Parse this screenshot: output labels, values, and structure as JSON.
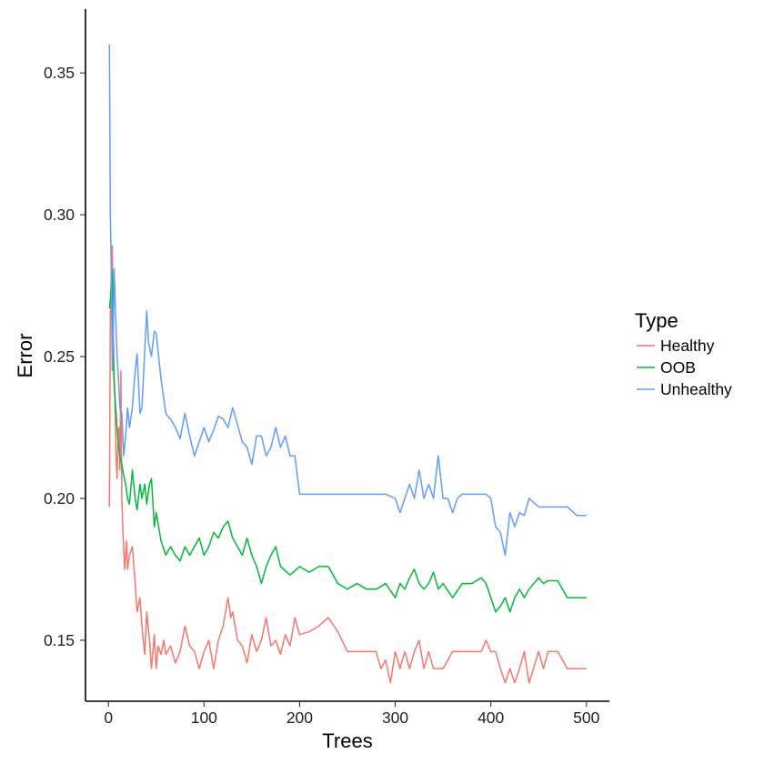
{
  "chart_data": {
    "type": "line",
    "xlabel": "Trees",
    "ylabel": "Error",
    "xlim": [
      -24,
      524
    ],
    "ylim": [
      0.1285,
      0.3725
    ],
    "xticks": [
      0,
      100,
      200,
      300,
      400,
      500
    ],
    "yticks": [
      0.15,
      0.2,
      0.25,
      0.3,
      0.35
    ],
    "ytick_labels": [
      "0.15",
      "0.20",
      "0.25",
      "0.30",
      "0.35"
    ],
    "grid": false,
    "legend": {
      "title": "Type",
      "position": "right"
    },
    "series": [
      {
        "name": "Healthy",
        "color": "#F8766D",
        "x": [
          1,
          2,
          3,
          4,
          5,
          6,
          7,
          8,
          9,
          10,
          11,
          12,
          13,
          14,
          15,
          17,
          19,
          20,
          22,
          25,
          28,
          30,
          33,
          35,
          38,
          40,
          43,
          45,
          48,
          50,
          52,
          55,
          58,
          60,
          65,
          70,
          75,
          80,
          85,
          90,
          95,
          100,
          105,
          110,
          115,
          120,
          125,
          128,
          130,
          135,
          140,
          145,
          150,
          155,
          160,
          165,
          170,
          175,
          180,
          185,
          190,
          195,
          200,
          210,
          220,
          230,
          240,
          250,
          260,
          270,
          280,
          285,
          290,
          295,
          300,
          305,
          310,
          315,
          320,
          325,
          330,
          335,
          340,
          350,
          360,
          370,
          380,
          390,
          395,
          400,
          405,
          410,
          415,
          420,
          425,
          430,
          435,
          440,
          450,
          455,
          460,
          470,
          480,
          490,
          500
        ],
        "y": [
          0.197,
          0.265,
          0.28,
          0.289,
          0.26,
          0.245,
          0.23,
          0.215,
          0.207,
          0.22,
          0.225,
          0.21,
          0.245,
          0.2,
          0.19,
          0.175,
          0.185,
          0.175,
          0.18,
          0.183,
          0.17,
          0.16,
          0.165,
          0.155,
          0.145,
          0.16,
          0.15,
          0.14,
          0.152,
          0.14,
          0.148,
          0.145,
          0.15,
          0.145,
          0.148,
          0.142,
          0.146,
          0.155,
          0.148,
          0.146,
          0.14,
          0.146,
          0.15,
          0.14,
          0.15,
          0.155,
          0.165,
          0.158,
          0.16,
          0.15,
          0.148,
          0.142,
          0.152,
          0.146,
          0.15,
          0.158,
          0.148,
          0.15,
          0.145,
          0.152,
          0.148,
          0.158,
          0.152,
          0.153,
          0.155,
          0.158,
          0.153,
          0.146,
          0.146,
          0.146,
          0.146,
          0.14,
          0.143,
          0.135,
          0.146,
          0.14,
          0.146,
          0.14,
          0.146,
          0.15,
          0.14,
          0.146,
          0.14,
          0.14,
          0.146,
          0.146,
          0.146,
          0.146,
          0.15,
          0.146,
          0.146,
          0.14,
          0.135,
          0.14,
          0.135,
          0.14,
          0.146,
          0.135,
          0.146,
          0.14,
          0.146,
          0.146,
          0.14,
          0.14,
          0.14
        ]
      },
      {
        "name": "OOB",
        "color": "#00BA38",
        "x": [
          1,
          2,
          3,
          4,
          5,
          6,
          7,
          8,
          9,
          10,
          12,
          14,
          16,
          18,
          20,
          22,
          25,
          28,
          30,
          33,
          35,
          38,
          40,
          43,
          45,
          48,
          50,
          55,
          60,
          65,
          70,
          75,
          80,
          85,
          90,
          95,
          100,
          105,
          110,
          115,
          120,
          125,
          130,
          135,
          140,
          145,
          150,
          155,
          160,
          165,
          170,
          175,
          180,
          190,
          200,
          210,
          220,
          230,
          240,
          250,
          260,
          270,
          280,
          290,
          300,
          305,
          310,
          315,
          320,
          325,
          330,
          335,
          340,
          345,
          350,
          360,
          370,
          380,
          390,
          395,
          400,
          405,
          410,
          415,
          420,
          425,
          430,
          435,
          440,
          445,
          450,
          455,
          460,
          470,
          480,
          490,
          500
        ],
        "y": [
          0.267,
          0.27,
          0.275,
          0.28,
          0.25,
          0.24,
          0.235,
          0.23,
          0.225,
          0.22,
          0.215,
          0.212,
          0.208,
          0.205,
          0.2,
          0.198,
          0.21,
          0.2,
          0.196,
          0.205,
          0.2,
          0.205,
          0.198,
          0.205,
          0.207,
          0.19,
          0.195,
          0.185,
          0.18,
          0.183,
          0.18,
          0.178,
          0.183,
          0.18,
          0.183,
          0.186,
          0.18,
          0.183,
          0.188,
          0.186,
          0.19,
          0.192,
          0.186,
          0.183,
          0.18,
          0.186,
          0.18,
          0.176,
          0.17,
          0.176,
          0.18,
          0.183,
          0.176,
          0.173,
          0.176,
          0.174,
          0.176,
          0.176,
          0.17,
          0.168,
          0.17,
          0.168,
          0.168,
          0.17,
          0.165,
          0.17,
          0.168,
          0.172,
          0.175,
          0.17,
          0.168,
          0.17,
          0.174,
          0.168,
          0.17,
          0.165,
          0.17,
          0.17,
          0.172,
          0.17,
          0.165,
          0.16,
          0.162,
          0.165,
          0.16,
          0.165,
          0.168,
          0.165,
          0.168,
          0.17,
          0.172,
          0.17,
          0.171,
          0.171,
          0.165,
          0.165,
          0.165
        ]
      },
      {
        "name": "Unhealthy",
        "color": "#619CFF",
        "x": [
          1,
          2,
          3,
          4,
          5,
          6,
          7,
          8,
          9,
          10,
          12,
          14,
          16,
          18,
          20,
          22,
          25,
          28,
          30,
          33,
          35,
          38,
          40,
          42,
          45,
          48,
          50,
          55,
          58,
          60,
          62,
          65,
          70,
          75,
          80,
          85,
          90,
          95,
          100,
          105,
          110,
          115,
          120,
          125,
          130,
          135,
          140,
          145,
          150,
          155,
          160,
          165,
          170,
          175,
          180,
          185,
          190,
          195,
          200,
          210,
          220,
          230,
          240,
          250,
          260,
          270,
          280,
          290,
          300,
          305,
          310,
          315,
          320,
          325,
          330,
          335,
          340,
          345,
          350,
          355,
          360,
          365,
          370,
          380,
          390,
          395,
          400,
          405,
          410,
          415,
          420,
          425,
          430,
          435,
          440,
          450,
          460,
          470,
          480,
          490,
          500
        ],
        "y": [
          0.36,
          0.3,
          0.28,
          0.245,
          0.258,
          0.281,
          0.27,
          0.26,
          0.25,
          0.245,
          0.232,
          0.23,
          0.215,
          0.222,
          0.232,
          0.225,
          0.232,
          0.245,
          0.251,
          0.23,
          0.232,
          0.252,
          0.266,
          0.255,
          0.25,
          0.259,
          0.258,
          0.242,
          0.235,
          0.23,
          0.229,
          0.228,
          0.225,
          0.221,
          0.23,
          0.222,
          0.215,
          0.22,
          0.225,
          0.22,
          0.224,
          0.229,
          0.228,
          0.225,
          0.232,
          0.226,
          0.22,
          0.218,
          0.212,
          0.222,
          0.222,
          0.215,
          0.218,
          0.225,
          0.218,
          0.222,
          0.215,
          0.215,
          0.2015,
          0.2015,
          0.2015,
          0.2015,
          0.2015,
          0.2015,
          0.2015,
          0.2015,
          0.2015,
          0.2015,
          0.2,
          0.195,
          0.2,
          0.205,
          0.2,
          0.21,
          0.2,
          0.205,
          0.2,
          0.215,
          0.2,
          0.2,
          0.195,
          0.2,
          0.2015,
          0.2015,
          0.2015,
          0.2015,
          0.2,
          0.19,
          0.188,
          0.18,
          0.195,
          0.19,
          0.195,
          0.194,
          0.2,
          0.197,
          0.197,
          0.197,
          0.197,
          0.194,
          0.194
        ]
      }
    ]
  }
}
